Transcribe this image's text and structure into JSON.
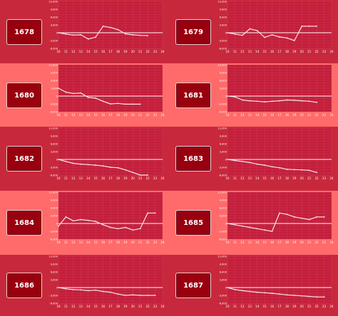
{
  "colors": {
    "dark_band": "#c8283c",
    "light_band": "#ff6b6b",
    "chart_bg": "#c41e3a",
    "id_box": "#99000f"
  },
  "charts": [
    {
      "id": "1678",
      "band": "dark"
    },
    {
      "id": "1679",
      "band": "dark"
    },
    {
      "id": "1680",
      "band": "light"
    },
    {
      "id": "1681",
      "band": "light"
    },
    {
      "id": "1682",
      "band": "dark"
    },
    {
      "id": "1683",
      "band": "dark"
    },
    {
      "id": "1684",
      "band": "light"
    },
    {
      "id": "1685",
      "band": "light"
    },
    {
      "id": "1686",
      "band": "dark"
    },
    {
      "id": "1687",
      "band": "dark"
    }
  ],
  "chart_data": [
    {
      "type": "line",
      "title": "1678",
      "x": [
        10,
        11,
        12,
        13,
        14,
        15,
        16,
        17,
        18,
        19,
        20,
        21,
        22,
        23,
        24
      ],
      "ylim": [
        -6000,
        12000
      ],
      "ytick_labels": [
        "12,000",
        "9,000",
        "6,000",
        "3,000",
        "0",
        "-3,000",
        "-6,000"
      ],
      "values": [
        0,
        -500,
        -900,
        -800,
        -2400,
        -1700,
        2500,
        2000,
        1200,
        -400,
        -800,
        -1000,
        -1100,
        null,
        null
      ]
    },
    {
      "type": "line",
      "title": "1679",
      "x": [
        10,
        11,
        12,
        13,
        14,
        15,
        16,
        17,
        18,
        19,
        20,
        21,
        22,
        23,
        24
      ],
      "ylim": [
        -6000,
        12000
      ],
      "ytick_labels": [
        "12,000",
        "9,000",
        "6,000",
        "3,000",
        "0",
        "-3,000",
        "-6,000"
      ],
      "values": [
        0,
        -500,
        -1000,
        1500,
        800,
        -1800,
        -800,
        -1600,
        -2000,
        -3000,
        2500,
        2500,
        2500,
        null,
        null
      ]
    },
    {
      "type": "line",
      "title": "1680",
      "x": [
        10,
        11,
        12,
        13,
        14,
        15,
        16,
        17,
        18,
        19,
        20,
        21,
        22,
        23,
        24
      ],
      "ylim": [
        -6000,
        12000
      ],
      "ytick_labels": [
        "12,000",
        "9,000",
        "6,000",
        "3,000",
        "0",
        "-3,000",
        "-6,000"
      ],
      "values": [
        3000,
        1500,
        1000,
        1200,
        -500,
        -800,
        -2000,
        -3000,
        -2800,
        -3100,
        -3100,
        -3100,
        null,
        null,
        null
      ]
    },
    {
      "type": "line",
      "title": "1681",
      "x": [
        10,
        11,
        12,
        13,
        14,
        15,
        16,
        17,
        18,
        19,
        20,
        21,
        22,
        23,
        24
      ],
      "ylim": [
        -6000,
        12000
      ],
      "ytick_labels": [
        "12,000",
        "9,000",
        "6,000",
        "3,000",
        "0",
        "-3,000",
        "-6,000"
      ],
      "values": [
        0,
        -300,
        -1500,
        -1800,
        -2000,
        -2200,
        -2000,
        -1800,
        -1500,
        -1600,
        -1800,
        -2000,
        -2400,
        null,
        null
      ]
    },
    {
      "type": "line",
      "title": "1682",
      "x": [
        10,
        11,
        12,
        13,
        14,
        15,
        16,
        17,
        18,
        19,
        20,
        21,
        22,
        23,
        24
      ],
      "ylim": [
        -6000,
        12000
      ],
      "ytick_labels": [
        "12,000",
        "9,000",
        "6,000",
        "3,000",
        "0",
        "-3,000",
        "-6,000"
      ],
      "values": [
        0,
        -800,
        -1500,
        -1800,
        -2000,
        -2200,
        -2500,
        -3000,
        -3200,
        -4000,
        -5000,
        -6000,
        -6000,
        null,
        null
      ]
    },
    {
      "type": "line",
      "title": "1683",
      "x": [
        10,
        11,
        12,
        13,
        14,
        15,
        16,
        17,
        18,
        19,
        20,
        21,
        22,
        23,
        24
      ],
      "ylim": [
        -6000,
        12000
      ],
      "ytick_labels": [
        "12,000",
        "9,000",
        "6,000",
        "3,000",
        "0",
        "-3,000",
        "-6,000"
      ],
      "values": [
        0,
        -400,
        -800,
        -1200,
        -1800,
        -2200,
        -2800,
        -3200,
        -3800,
        -3900,
        -4000,
        -4200,
        -5000,
        null,
        null
      ]
    },
    {
      "type": "line",
      "title": "1684",
      "x": [
        10,
        11,
        12,
        13,
        14,
        15,
        16,
        17,
        18,
        19,
        20,
        21,
        22,
        23,
        24
      ],
      "ylim": [
        -6000,
        12000
      ],
      "ytick_labels": [
        "12,000",
        "9,000",
        "6,000",
        "3,000",
        "0",
        "-3,000",
        "-6,000"
      ],
      "values": [
        -1000,
        2500,
        1000,
        1500,
        1200,
        800,
        -500,
        -1500,
        -2000,
        -1500,
        -2500,
        -2000,
        4000,
        4000,
        null
      ]
    },
    {
      "type": "line",
      "title": "1685",
      "x": [
        10,
        11,
        12,
        13,
        14,
        15,
        16,
        17,
        18,
        19,
        20,
        21,
        22,
        23,
        24
      ],
      "ylim": [
        -6000,
        12000
      ],
      "ytick_labels": [
        "12,000",
        "9,000",
        "6,000",
        "3,000",
        "0",
        "-3,000",
        "-6,000"
      ],
      "values": [
        0,
        -500,
        -1000,
        -1500,
        -2000,
        -2500,
        -3000,
        4000,
        3500,
        2500,
        2000,
        1500,
        2500,
        2500,
        null
      ]
    },
    {
      "type": "line",
      "title": "1686",
      "x": [
        10,
        11,
        12,
        13,
        14,
        15,
        16,
        17,
        18,
        19,
        20,
        21,
        22,
        23,
        24
      ],
      "ylim": [
        -6000,
        12000
      ],
      "ytick_labels": [
        "12,000",
        "9,000",
        "6,000",
        "3,000",
        "0",
        "-3,000",
        "-6,000"
      ],
      "values": [
        0,
        -500,
        -800,
        -900,
        -1200,
        -1000,
        -1500,
        -1800,
        -2500,
        -3000,
        -2800,
        -3000,
        -3000,
        -3000,
        null
      ]
    },
    {
      "type": "line",
      "title": "1687",
      "x": [
        10,
        11,
        12,
        13,
        14,
        15,
        16,
        17,
        18,
        19,
        20,
        21,
        22,
        23,
        24
      ],
      "ylim": [
        -6000,
        12000
      ],
      "ytick_labels": [
        "12,000",
        "9,000",
        "6,000",
        "3,000",
        "0",
        "-3,000",
        "-6,000"
      ],
      "values": [
        0,
        -800,
        -1200,
        -1500,
        -1800,
        -2000,
        -2200,
        -2500,
        -2800,
        -3000,
        -3200,
        -3400,
        -3600,
        -3600,
        null
      ]
    }
  ]
}
